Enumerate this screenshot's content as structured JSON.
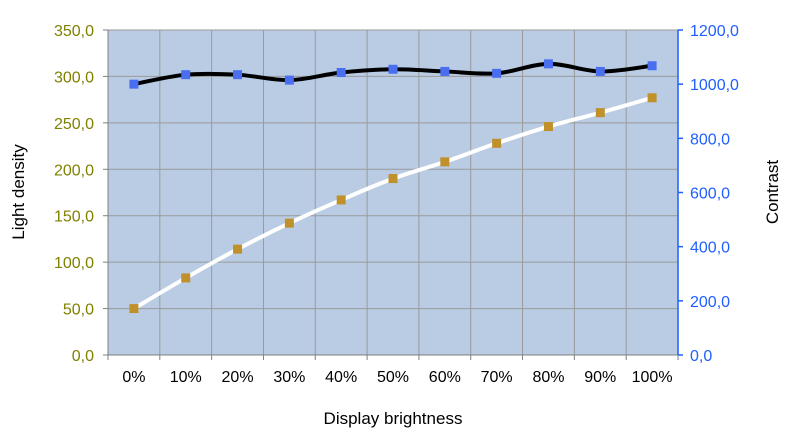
{
  "chart_data": {
    "type": "line",
    "xlabel": "Display brightness",
    "ylabel_left": "Light density",
    "ylabel_right": "Contrast",
    "categories": [
      "0%",
      "10%",
      "20%",
      "30%",
      "40%",
      "50%",
      "60%",
      "70%",
      "80%",
      "90%",
      "100%"
    ],
    "y_left": {
      "lim": [
        0,
        350
      ],
      "ticks": [
        0,
        50,
        100,
        150,
        200,
        250,
        300,
        350
      ],
      "tick_labels": [
        "0,0",
        "50,0",
        "100,0",
        "150,0",
        "200,0",
        "250,0",
        "300,0",
        "350,0"
      ],
      "color": "#808000"
    },
    "y_right": {
      "lim": [
        0,
        1200
      ],
      "ticks": [
        0,
        200,
        400,
        600,
        800,
        1000,
        1200
      ],
      "tick_labels": [
        "0,0",
        "200,0",
        "400,0",
        "600,0",
        "800,0",
        "1000,0",
        "1200,0"
      ],
      "color": "#1f5fff"
    },
    "grid": true,
    "plot_background": "#b9cce4",
    "series": [
      {
        "axis": "left",
        "line_color": "#ffffff",
        "marker_color": "#c0902a",
        "values": [
          50,
          83,
          114,
          142,
          167,
          190,
          208,
          228,
          246,
          261,
          277
        ]
      },
      {
        "axis": "right",
        "line_color": "#000000",
        "marker_color": "#4a6ef0",
        "values": [
          1000,
          1035,
          1035,
          1015,
          1043,
          1055,
          1047,
          1040,
          1075,
          1047,
          1068
        ]
      }
    ]
  }
}
